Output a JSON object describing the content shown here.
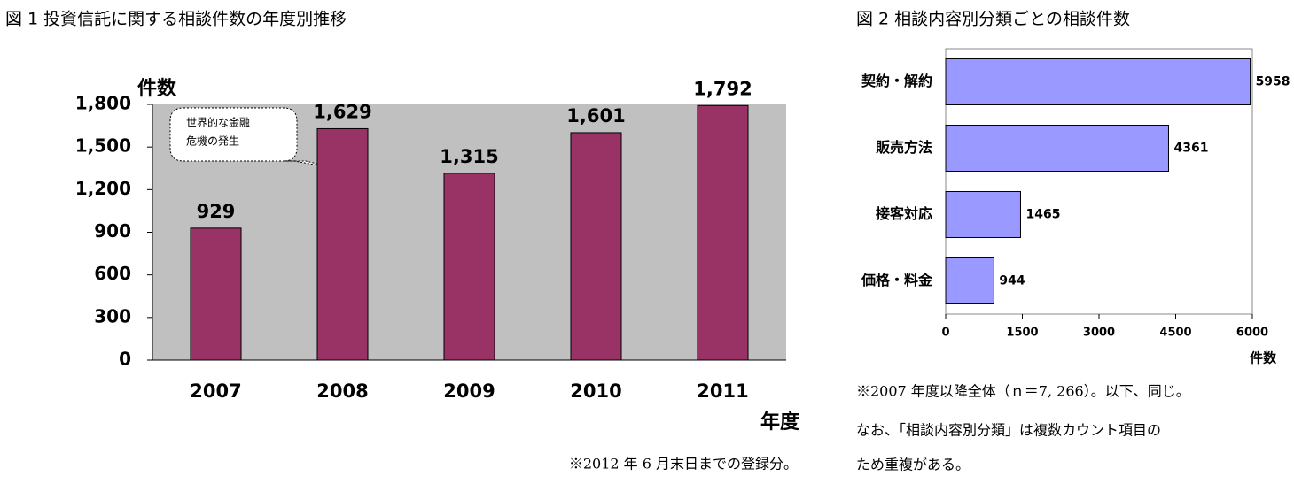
{
  "chart_data": [
    {
      "type": "bar",
      "title": "図 1 投資信託に関する相談件数の年度別推移",
      "y_label": "件数",
      "x_label": "年度",
      "categories": [
        "2007",
        "2008",
        "2009",
        "2010",
        "2011"
      ],
      "values": [
        929,
        1629,
        1315,
        1601,
        1792
      ],
      "value_labels": [
        "929",
        "1,629",
        "1,315",
        "1,601",
        "1,792"
      ],
      "color": "#993366",
      "ylim": [
        0,
        1800
      ],
      "yticks": [
        0,
        300,
        600,
        900,
        {
          "value": 1200,
          "label": "1,200"
        },
        {
          "value": 1500,
          "label": "1,500"
        },
        {
          "value": 1800,
          "label": "1,800"
        }
      ],
      "grid": false,
      "annotation": [
        "世界的な金融",
        "危機の発生"
      ],
      "footnote": "※2012 年 6 月末日までの登録分。"
    },
    {
      "type": "barh",
      "title": "図 2 相談内容別分類ごとの相談件数",
      "x_label": "件数",
      "categories": [
        "契約・解約",
        "販売方法",
        "接客対応",
        "価格・料金"
      ],
      "values": [
        5958,
        4361,
        1465,
        944
      ],
      "color": "#9999ff",
      "xlim": [
        0,
        6000
      ],
      "xticks": [
        0,
        1500,
        3000,
        4500,
        6000
      ],
      "grid": false,
      "notes": [
        "※2007 年度以降全体（ｎ＝7, 266）。以下、同じ。",
        "なお、「相談内容別分類」は複数カウント項目の",
        "ため重複がある。"
      ]
    }
  ]
}
